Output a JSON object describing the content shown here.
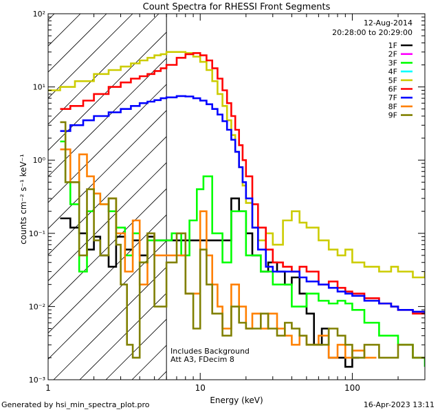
{
  "chart_data": {
    "type": "line",
    "title": "Count Spectra for RHESSI Front Segments",
    "xlabel": "Energy (keV)",
    "ylabel": "counts cm⁻² s⁻¹ keV⁻¹",
    "xscale": "log",
    "yscale": "log",
    "xlim": [
      1,
      300
    ],
    "ylim": [
      0.001,
      100
    ],
    "xticks": [
      {
        "value": 1,
        "label": "1"
      },
      {
        "value": 10,
        "label": "10"
      },
      {
        "value": 100,
        "label": "100"
      }
    ],
    "yticks": [
      {
        "value": 100,
        "label": "10²"
      },
      {
        "value": 10,
        "label": "10¹"
      },
      {
        "value": 1,
        "label": "10⁰"
      },
      {
        "value": 0.1,
        "label": "10⁻¹"
      },
      {
        "value": 0.01,
        "label": "10⁻²"
      },
      {
        "value": 0.001,
        "label": "10⁻³"
      }
    ],
    "date": "12-Aug-2014",
    "time_range": "20:28:00 to 20:29:00",
    "annotations": [
      "Includes Background",
      "Att A3, FDecim  8"
    ],
    "attenuator_energy": 6,
    "hatched_region": [
      1,
      6
    ],
    "series": [
      {
        "name": "1F",
        "color": "#000000",
        "x": [
          1.2,
          1.4,
          1.6,
          1.8,
          2.0,
          2.2,
          2.5,
          2.8,
          3.2,
          3.6,
          4.0,
          4.5,
          5.0,
          16,
          18,
          20,
          22,
          25,
          28,
          32,
          36,
          40,
          45,
          50,
          56,
          63,
          70,
          80,
          90,
          100
        ],
        "y": [
          0.16,
          0.12,
          0.1,
          0.06,
          0.09,
          0.05,
          0.035,
          0.09,
          0.06,
          0.08,
          0.05,
          0.09,
          0.08,
          0.3,
          0.2,
          0.1,
          0.05,
          0.03,
          0.04,
          0.03,
          0.02,
          0.025,
          0.015,
          0.008,
          0.003,
          0.005,
          0.002,
          0.002,
          0.0015,
          0.002
        ]
      },
      {
        "name": "2F",
        "color": "#ff00ff",
        "x": [],
        "y": []
      },
      {
        "name": "3F",
        "color": "#00ff00",
        "x": [
          1.2,
          1.3,
          1.4,
          1.6,
          1.8,
          2.0,
          2.2,
          2.5,
          2.8,
          3.2,
          3.6,
          4.0,
          4.5,
          6.5,
          7.5,
          8.5,
          9.5,
          10.5,
          12,
          14,
          16,
          20,
          25,
          30,
          40,
          50,
          60,
          70,
          80,
          90,
          100,
          120,
          150,
          200,
          250,
          300
        ],
        "y": [
          1.8,
          0.5,
          0.25,
          0.03,
          0.2,
          0.35,
          0.25,
          0.2,
          0.12,
          0.05,
          0.1,
          0.04,
          0.08,
          0.1,
          0.05,
          0.15,
          0.4,
          0.6,
          0.1,
          0.04,
          0.2,
          0.05,
          0.03,
          0.02,
          0.01,
          0.015,
          0.012,
          0.011,
          0.012,
          0.011,
          0.009,
          0.006,
          0.004,
          0.003,
          0.002,
          0.0015
        ]
      },
      {
        "name": "4F",
        "color": "#00ffff",
        "x": [],
        "y": []
      },
      {
        "name": "5F",
        "color": "#cccc00",
        "x": [
          1.0,
          1.2,
          1.5,
          2.0,
          2.5,
          3.0,
          3.5,
          4.0,
          4.5,
          5.0,
          5.5,
          6.0,
          7.0,
          8.0,
          9.0,
          10,
          11,
          12,
          13,
          14,
          15,
          16,
          17,
          18,
          19,
          20,
          22,
          24,
          27,
          30,
          35,
          40,
          45,
          50,
          60,
          70,
          80,
          90,
          100,
          120,
          150,
          180,
          200,
          250,
          300
        ],
        "y": [
          9,
          10,
          12,
          15,
          17,
          19,
          21,
          23,
          25,
          27,
          28,
          30,
          30,
          29,
          26,
          22,
          17,
          12,
          8,
          5.5,
          3.5,
          2.2,
          1.3,
          0.8,
          0.45,
          0.26,
          0.12,
          0.08,
          0.1,
          0.07,
          0.15,
          0.2,
          0.14,
          0.12,
          0.08,
          0.06,
          0.05,
          0.06,
          0.04,
          0.035,
          0.03,
          0.035,
          0.03,
          0.025,
          0.03
        ]
      },
      {
        "name": "6F",
        "color": "#ff0000",
        "x": [
          1.2,
          1.4,
          1.7,
          2.0,
          2.5,
          3.0,
          3.5,
          4.0,
          4.5,
          5.0,
          5.5,
          6.0,
          7.0,
          8.0,
          9.0,
          10,
          11,
          12,
          13,
          14,
          15,
          16,
          17,
          18,
          19,
          20,
          22,
          24,
          27,
          30,
          35,
          40,
          45,
          50,
          60,
          70,
          80,
          90,
          100,
          120,
          150,
          180,
          200,
          250,
          300
        ],
        "y": [
          5,
          5.5,
          6.5,
          8,
          10,
          11.5,
          13,
          14,
          15,
          16.5,
          18,
          20,
          25,
          28,
          29,
          27,
          23,
          18,
          13,
          9,
          6,
          4,
          2.6,
          1.6,
          1.0,
          0.6,
          0.25,
          0.12,
          0.06,
          0.04,
          0.035,
          0.03,
          0.035,
          0.03,
          0.02,
          0.022,
          0.018,
          0.016,
          0.015,
          0.013,
          0.011,
          0.01,
          0.009,
          0.008,
          0.008
        ]
      },
      {
        "name": "7F",
        "color": "#0000ff",
        "x": [
          1.2,
          1.4,
          1.7,
          2.0,
          2.5,
          3.0,
          3.5,
          4.0,
          4.5,
          5.0,
          5.5,
          6.0,
          7.0,
          8.0,
          9.0,
          10,
          11,
          12,
          13,
          14,
          15,
          16,
          17,
          18,
          19,
          20,
          22,
          24,
          27,
          30,
          35,
          40,
          45,
          50,
          60,
          70,
          80,
          90,
          100,
          120,
          150,
          180,
          200,
          250,
          300
        ],
        "y": [
          2.5,
          3,
          3.5,
          4,
          4.5,
          5,
          5.5,
          6,
          6.3,
          6.6,
          7,
          7.2,
          7.5,
          7.4,
          7,
          6.5,
          5.8,
          5,
          4.2,
          3.4,
          2.6,
          1.9,
          1.3,
          0.8,
          0.5,
          0.3,
          0.12,
          0.06,
          0.035,
          0.03,
          0.03,
          0.03,
          0.025,
          0.022,
          0.02,
          0.018,
          0.016,
          0.015,
          0.014,
          0.012,
          0.011,
          0.01,
          0.009,
          0.0085,
          0.008
        ]
      },
      {
        "name": "8F",
        "color": "#ff8000",
        "x": [
          1.2,
          1.4,
          1.6,
          1.8,
          2.0,
          2.2,
          2.5,
          2.8,
          3.2,
          3.6,
          4.0,
          4.5,
          5.0,
          6.5,
          8.0,
          10,
          11,
          12,
          13,
          14,
          16,
          18,
          20,
          22,
          25,
          28,
          32,
          36,
          40,
          45,
          50,
          60,
          70,
          80,
          90,
          100,
          120
        ],
        "y": [
          1.4,
          0.5,
          1.2,
          0.6,
          0.35,
          0.25,
          0.3,
          0.1,
          0.03,
          0.15,
          0.02,
          0.1,
          0.05,
          0.05,
          0.015,
          0.2,
          0.05,
          0.02,
          0.01,
          0.005,
          0.02,
          0.01,
          0.005,
          0.008,
          0.005,
          0.008,
          0.005,
          0.004,
          0.003,
          0.004,
          0.003,
          0.004,
          0.002,
          0.003,
          0.002,
          0.0025,
          0.002
        ]
      },
      {
        "name": "9F",
        "color": "#808000",
        "x": [
          1.2,
          1.3,
          1.4,
          1.6,
          1.8,
          2.0,
          2.2,
          2.5,
          2.8,
          3.0,
          3.3,
          3.6,
          4.0,
          4.5,
          5.0,
          6.0,
          7.0,
          8.0,
          9.0,
          10,
          11,
          12,
          14,
          16,
          18,
          20,
          22,
          25,
          28,
          32,
          36,
          40,
          45,
          50,
          60,
          70,
          80,
          90,
          100,
          120,
          150,
          200,
          250,
          300
        ],
        "y": [
          3.3,
          0.5,
          0.5,
          0.05,
          0.4,
          0.08,
          0.05,
          0.3,
          0.07,
          0.02,
          0.003,
          0.002,
          0.04,
          0.1,
          0.01,
          0.04,
          0.1,
          0.015,
          0.005,
          0.06,
          0.02,
          0.008,
          0.004,
          0.01,
          0.006,
          0.005,
          0.005,
          0.008,
          0.005,
          0.004,
          0.006,
          0.005,
          0.004,
          0.003,
          0.003,
          0.005,
          0.004,
          0.003,
          0.002,
          0.003,
          0.002,
          0.003,
          0.002,
          0.002
        ]
      }
    ]
  },
  "footer": {
    "generated_by": "Generated by hsi_min_spectra_plot.pro",
    "timestamp": "16-Apr-2023 13:11"
  }
}
